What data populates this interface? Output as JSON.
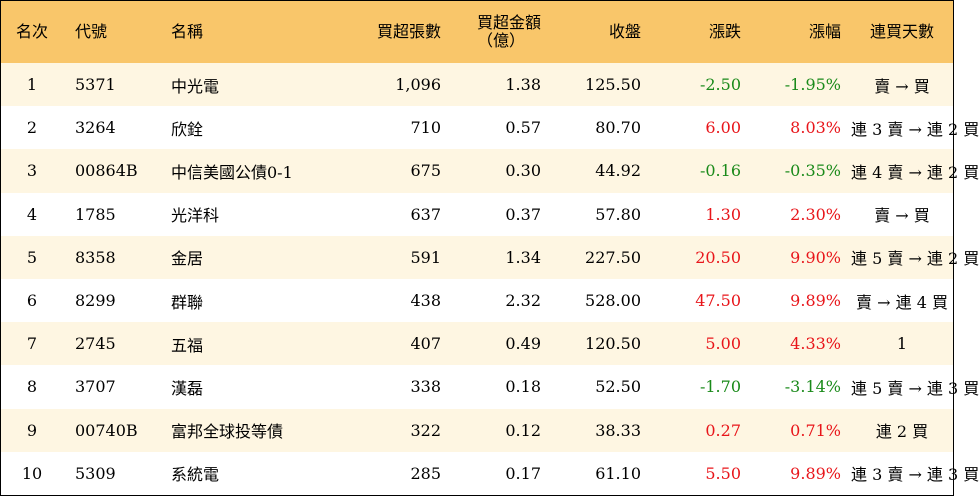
{
  "headers": {
    "rank": "名次",
    "code": "代號",
    "name": "名稱",
    "volume": "買超張數",
    "amount_line1": "買超金額",
    "amount_line2": "（億）",
    "close": "收盤",
    "change": "漲跌",
    "pct": "漲幅",
    "streak": "連買天數"
  },
  "colors": {
    "header_bg": "#f9c66a",
    "stripe_bg": "#fef6e2",
    "up": "#e8151a",
    "down": "#1a8a1a"
  },
  "rows": [
    {
      "rank": "1",
      "code": "5371",
      "name": "中光電",
      "volume": "1,096",
      "amount": "1.38",
      "close": "125.50",
      "change": "-2.50",
      "pct": "-1.95%",
      "streak": "賣 → 買",
      "dir": "down"
    },
    {
      "rank": "2",
      "code": "3264",
      "name": "欣銓",
      "volume": "710",
      "amount": "0.57",
      "close": "80.70",
      "change": "6.00",
      "pct": "8.03%",
      "streak": "連 3 賣 → 連 2 買",
      "dir": "up"
    },
    {
      "rank": "3",
      "code": "00864B",
      "name": "中信美國公債0-1",
      "volume": "675",
      "amount": "0.30",
      "close": "44.92",
      "change": "-0.16",
      "pct": "-0.35%",
      "streak": "連 4 賣 → 連 2 買",
      "dir": "down"
    },
    {
      "rank": "4",
      "code": "1785",
      "name": "光洋科",
      "volume": "637",
      "amount": "0.37",
      "close": "57.80",
      "change": "1.30",
      "pct": "2.30%",
      "streak": "賣 → 買",
      "dir": "up"
    },
    {
      "rank": "5",
      "code": "8358",
      "name": "金居",
      "volume": "591",
      "amount": "1.34",
      "close": "227.50",
      "change": "20.50",
      "pct": "9.90%",
      "streak": "連 5 賣 → 連 2 買",
      "dir": "up"
    },
    {
      "rank": "6",
      "code": "8299",
      "name": "群聯",
      "volume": "438",
      "amount": "2.32",
      "close": "528.00",
      "change": "47.50",
      "pct": "9.89%",
      "streak": "賣 → 連 4 買",
      "dir": "up"
    },
    {
      "rank": "7",
      "code": "2745",
      "name": "五福",
      "volume": "407",
      "amount": "0.49",
      "close": "120.50",
      "change": "5.00",
      "pct": "4.33%",
      "streak": "1",
      "dir": "up"
    },
    {
      "rank": "8",
      "code": "3707",
      "name": "漢磊",
      "volume": "338",
      "amount": "0.18",
      "close": "52.50",
      "change": "-1.70",
      "pct": "-3.14%",
      "streak": "連 5 賣 → 連 3 買",
      "dir": "down"
    },
    {
      "rank": "9",
      "code": "00740B",
      "name": "富邦全球投等債",
      "volume": "322",
      "amount": "0.12",
      "close": "38.33",
      "change": "0.27",
      "pct": "0.71%",
      "streak": "連 2 買",
      "dir": "up"
    },
    {
      "rank": "10",
      "code": "5309",
      "name": "系統電",
      "volume": "285",
      "amount": "0.17",
      "close": "61.10",
      "change": "5.50",
      "pct": "9.89%",
      "streak": "連 3 賣 → 連 3 買",
      "dir": "up"
    }
  ]
}
